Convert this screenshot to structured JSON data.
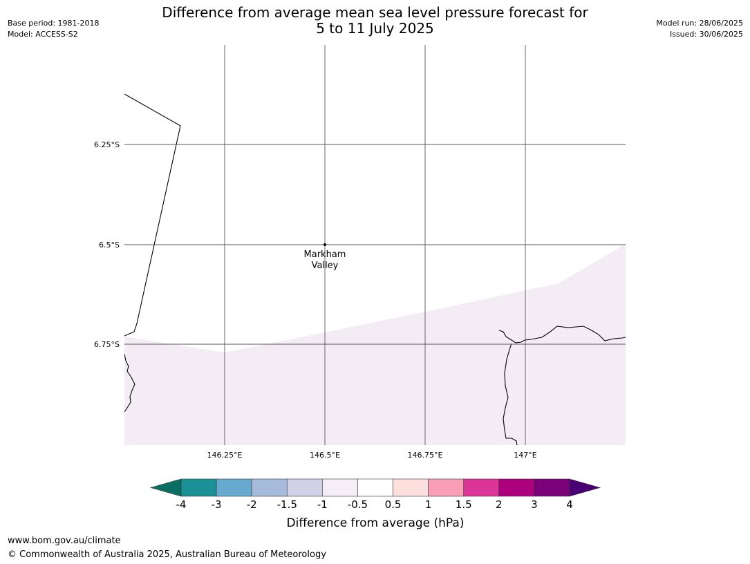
{
  "header": {
    "title_line1": "Difference from average mean sea level pressure forecast for",
    "title_line2": "5 to 11 July 2025",
    "base_period": "Base period: 1981-2018",
    "model": "Model: ACCESS-S2",
    "model_run": "Model run: 28/06/2025",
    "issued": "Issued: 30/06/2025"
  },
  "map": {
    "lat_labels": [
      "6.25°S",
      "6.5°S",
      "6.75°S"
    ],
    "lon_labels": [
      "146.25°E",
      "146.5°E",
      "146.75°E",
      "147°E"
    ],
    "location": {
      "name_line1": "Markham",
      "name_line2": "Valley",
      "lon": 146.5,
      "lat": -6.5
    },
    "anomaly_band_color": "#f3ecf4",
    "coastline_color": "#000000",
    "grid_color": "#555555"
  },
  "colorbar": {
    "label": "Difference from average (hPa)",
    "tick_labels": [
      "-4",
      "-3",
      "-2",
      "-1.5",
      "-1",
      "-0.5",
      "0.5",
      "1",
      "1.5",
      "2",
      "3",
      "4"
    ],
    "under_color": "#0b6e63",
    "over_color": "#4b0073",
    "colors": [
      "#1b9196",
      "#67a9cf",
      "#a6badb",
      "#d0d1e6",
      "#f5eef6",
      "#ffffff",
      "#fddfdd",
      "#f99fb5",
      "#dd3497",
      "#ae017e",
      "#7a0177"
    ]
  },
  "footer": {
    "url": "www.bom.gov.au/climate",
    "copyright": "© Commonwealth of Australia 2025, Australian Bureau of Meteorology"
  }
}
